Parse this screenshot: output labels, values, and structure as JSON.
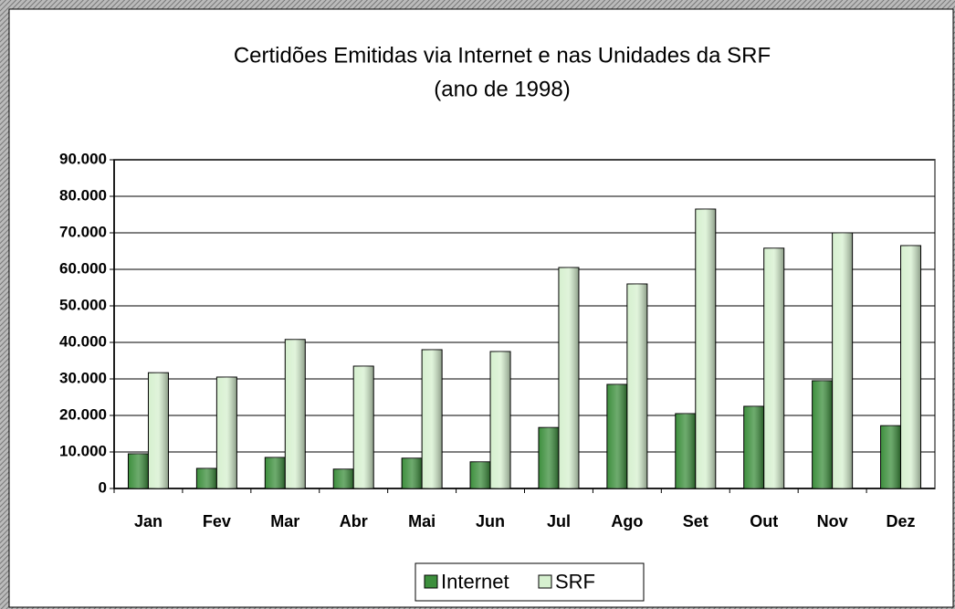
{
  "chart_data": {
    "type": "bar",
    "title": "Certidões Emitidas via  Internet  e  nas Unidades da SRF",
    "subtitle": "(ano de 1998)",
    "categories": [
      "Jan",
      "Fev",
      "Mar",
      "Abr",
      "Mai",
      "Jun",
      "Jul",
      "Ago",
      "Set",
      "Out",
      "Nov",
      "Dez"
    ],
    "series": [
      {
        "name": "Internet",
        "color": "#3d8f3d",
        "values": [
          9500,
          5500,
          8500,
          5300,
          8300,
          7300,
          16700,
          28500,
          20500,
          22500,
          29500,
          17200
        ]
      },
      {
        "name": "SRF",
        "color": "#d6f0cf",
        "values": [
          31700,
          30500,
          40800,
          33500,
          38000,
          37500,
          60500,
          56000,
          76500,
          65800,
          70000,
          66500
        ]
      }
    ],
    "ylim": [
      0,
      90000
    ],
    "yticks": [
      0,
      {
        "value": 10000,
        "label": "10.000"
      },
      {
        "value": 20000,
        "label": "20.000"
      },
      {
        "value": 30000,
        "label": "30.000"
      },
      {
        "value": 40000,
        "label": "40.000"
      },
      {
        "value": 50000,
        "label": "50.000"
      },
      {
        "value": 60000,
        "label": "60.000"
      },
      {
        "value": 70000,
        "label": "70.000"
      },
      {
        "value": 80000,
        "label": "80.000"
      },
      {
        "value": 90000,
        "label": "90.000"
      }
    ],
    "grid": true,
    "legend": "bottom"
  }
}
